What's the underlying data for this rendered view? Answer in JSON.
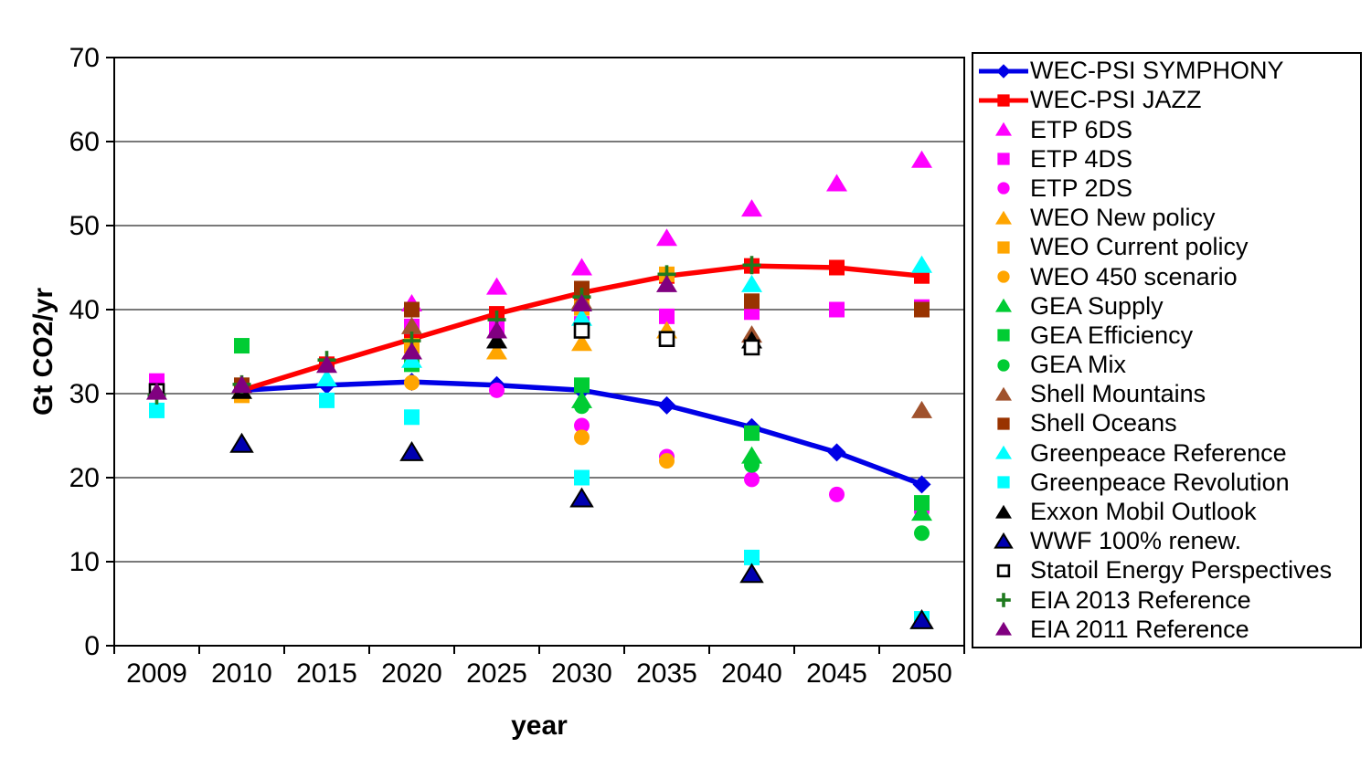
{
  "chart_data": {
    "type": "scatter",
    "title": "",
    "xlabel": "year",
    "ylabel": "Gt CO2/yr",
    "ylim": [
      0,
      70
    ],
    "y_ticks": [
      0,
      10,
      20,
      30,
      40,
      50,
      60,
      70
    ],
    "grid": "horizontal",
    "legend_position": "right",
    "categories": [
      "2009",
      "2010",
      "2015",
      "2020",
      "2025",
      "2030",
      "2035",
      "2040",
      "2045",
      "2050"
    ],
    "series": [
      {
        "name": "WEC-PSI SYMPHONY",
        "marker": "diamond",
        "color": "#0000E6",
        "line": true,
        "values": [
          null,
          30.4,
          31,
          31.4,
          31,
          30.4,
          28.6,
          26,
          23,
          19.2
        ]
      },
      {
        "name": "WEC-PSI JAZZ",
        "marker": "square",
        "color": "#FF0000",
        "line": true,
        "values": [
          null,
          30.4,
          33.5,
          36.5,
          39.5,
          42,
          44,
          45.2,
          45,
          44
        ]
      },
      {
        "name": "ETP 6DS",
        "marker": "triangle",
        "color": "#FF00FF",
        "values": [
          null,
          null,
          null,
          40.7,
          42.7,
          45,
          48.5,
          52,
          55,
          57.8
        ]
      },
      {
        "name": "ETP 4DS",
        "marker": "square",
        "color": "#FF00FF",
        "values": [
          31.5,
          null,
          null,
          38,
          38,
          38.3,
          39.2,
          39.7,
          40,
          40.3
        ]
      },
      {
        "name": "ETP 2DS",
        "marker": "circle",
        "color": "#FF00FF",
        "values": [
          null,
          null,
          null,
          null,
          30.4,
          26.2,
          22.5,
          19.8,
          18,
          16
        ]
      },
      {
        "name": "WEO New policy",
        "marker": "triangle",
        "color": "#FFA500",
        "values": [
          null,
          null,
          null,
          null,
          35,
          36,
          37.5,
          null,
          null,
          null
        ]
      },
      {
        "name": "WEO Current policy",
        "marker": "square",
        "color": "#FFA500",
        "values": [
          null,
          29.8,
          null,
          35.7,
          null,
          40.2,
          44.2,
          null,
          null,
          null
        ]
      },
      {
        "name": "WEO 450 scenario",
        "marker": "circle",
        "color": "#FFA500",
        "values": [
          null,
          null,
          null,
          31.3,
          null,
          24.8,
          22,
          null,
          null,
          null
        ]
      },
      {
        "name": "GEA Supply",
        "marker": "triangle",
        "color": "#00CC33",
        "values": [
          null,
          null,
          null,
          null,
          null,
          29.2,
          null,
          22.6,
          null,
          15.8
        ]
      },
      {
        "name": "GEA Efficiency",
        "marker": "square",
        "color": "#00CC33",
        "values": [
          null,
          35.7,
          null,
          33.5,
          null,
          31,
          null,
          25.3,
          null,
          17
        ]
      },
      {
        "name": "GEA Mix",
        "marker": "circle",
        "color": "#00CC33",
        "values": [
          null,
          null,
          null,
          null,
          null,
          28.5,
          null,
          21.5,
          null,
          13.4
        ]
      },
      {
        "name": "Shell Mountains",
        "marker": "triangle",
        "color": "#A0522D",
        "values": [
          null,
          null,
          null,
          38,
          null,
          41,
          null,
          37,
          null,
          28
        ]
      },
      {
        "name": "Shell Oceans",
        "marker": "square",
        "color": "#993300",
        "values": [
          null,
          31,
          null,
          40,
          null,
          42.5,
          null,
          41,
          null,
          40
        ]
      },
      {
        "name": "Greenpeace Reference",
        "marker": "triangle",
        "color": "#00FFFF",
        "values": [
          null,
          null,
          31.8,
          34,
          null,
          39,
          null,
          43,
          null,
          45.3
        ]
      },
      {
        "name": "Greenpeace Revolution",
        "marker": "square",
        "color": "#00FFFF",
        "values": [
          28,
          null,
          29.2,
          27.2,
          null,
          20,
          null,
          10.5,
          null,
          3.2
        ]
      },
      {
        "name": "Exxon Mobil Outlook",
        "marker": "triangle",
        "color": "#000000",
        "values": [
          null,
          30.3,
          null,
          null,
          36.3,
          null,
          null,
          36.3,
          null,
          null
        ]
      },
      {
        "name": "WWF 100% renew.",
        "marker": "triangle",
        "color": "#0000B0",
        "stroke": "#000000",
        "values": [
          null,
          24,
          null,
          23,
          null,
          17.5,
          null,
          8.5,
          null,
          3
        ]
      },
      {
        "name": "Statoil Energy Perspectives",
        "marker": "open-square",
        "color": "#FFFFFF",
        "stroke": "#000000",
        "values": [
          30.3,
          null,
          null,
          null,
          null,
          37.5,
          36.5,
          35.5,
          null,
          null
        ]
      },
      {
        "name": "EIA 2013 Reference",
        "marker": "plus",
        "color": "#1F7A1F",
        "values": [
          29.8,
          31.1,
          34,
          36.3,
          38.8,
          41.5,
          44.2,
          45.3,
          null,
          null
        ]
      },
      {
        "name": "EIA 2011 Reference",
        "marker": "triangle",
        "color": "#800080",
        "values": [
          30.2,
          31,
          33.4,
          35,
          37.5,
          40.7,
          43,
          null,
          null,
          null
        ]
      }
    ]
  }
}
